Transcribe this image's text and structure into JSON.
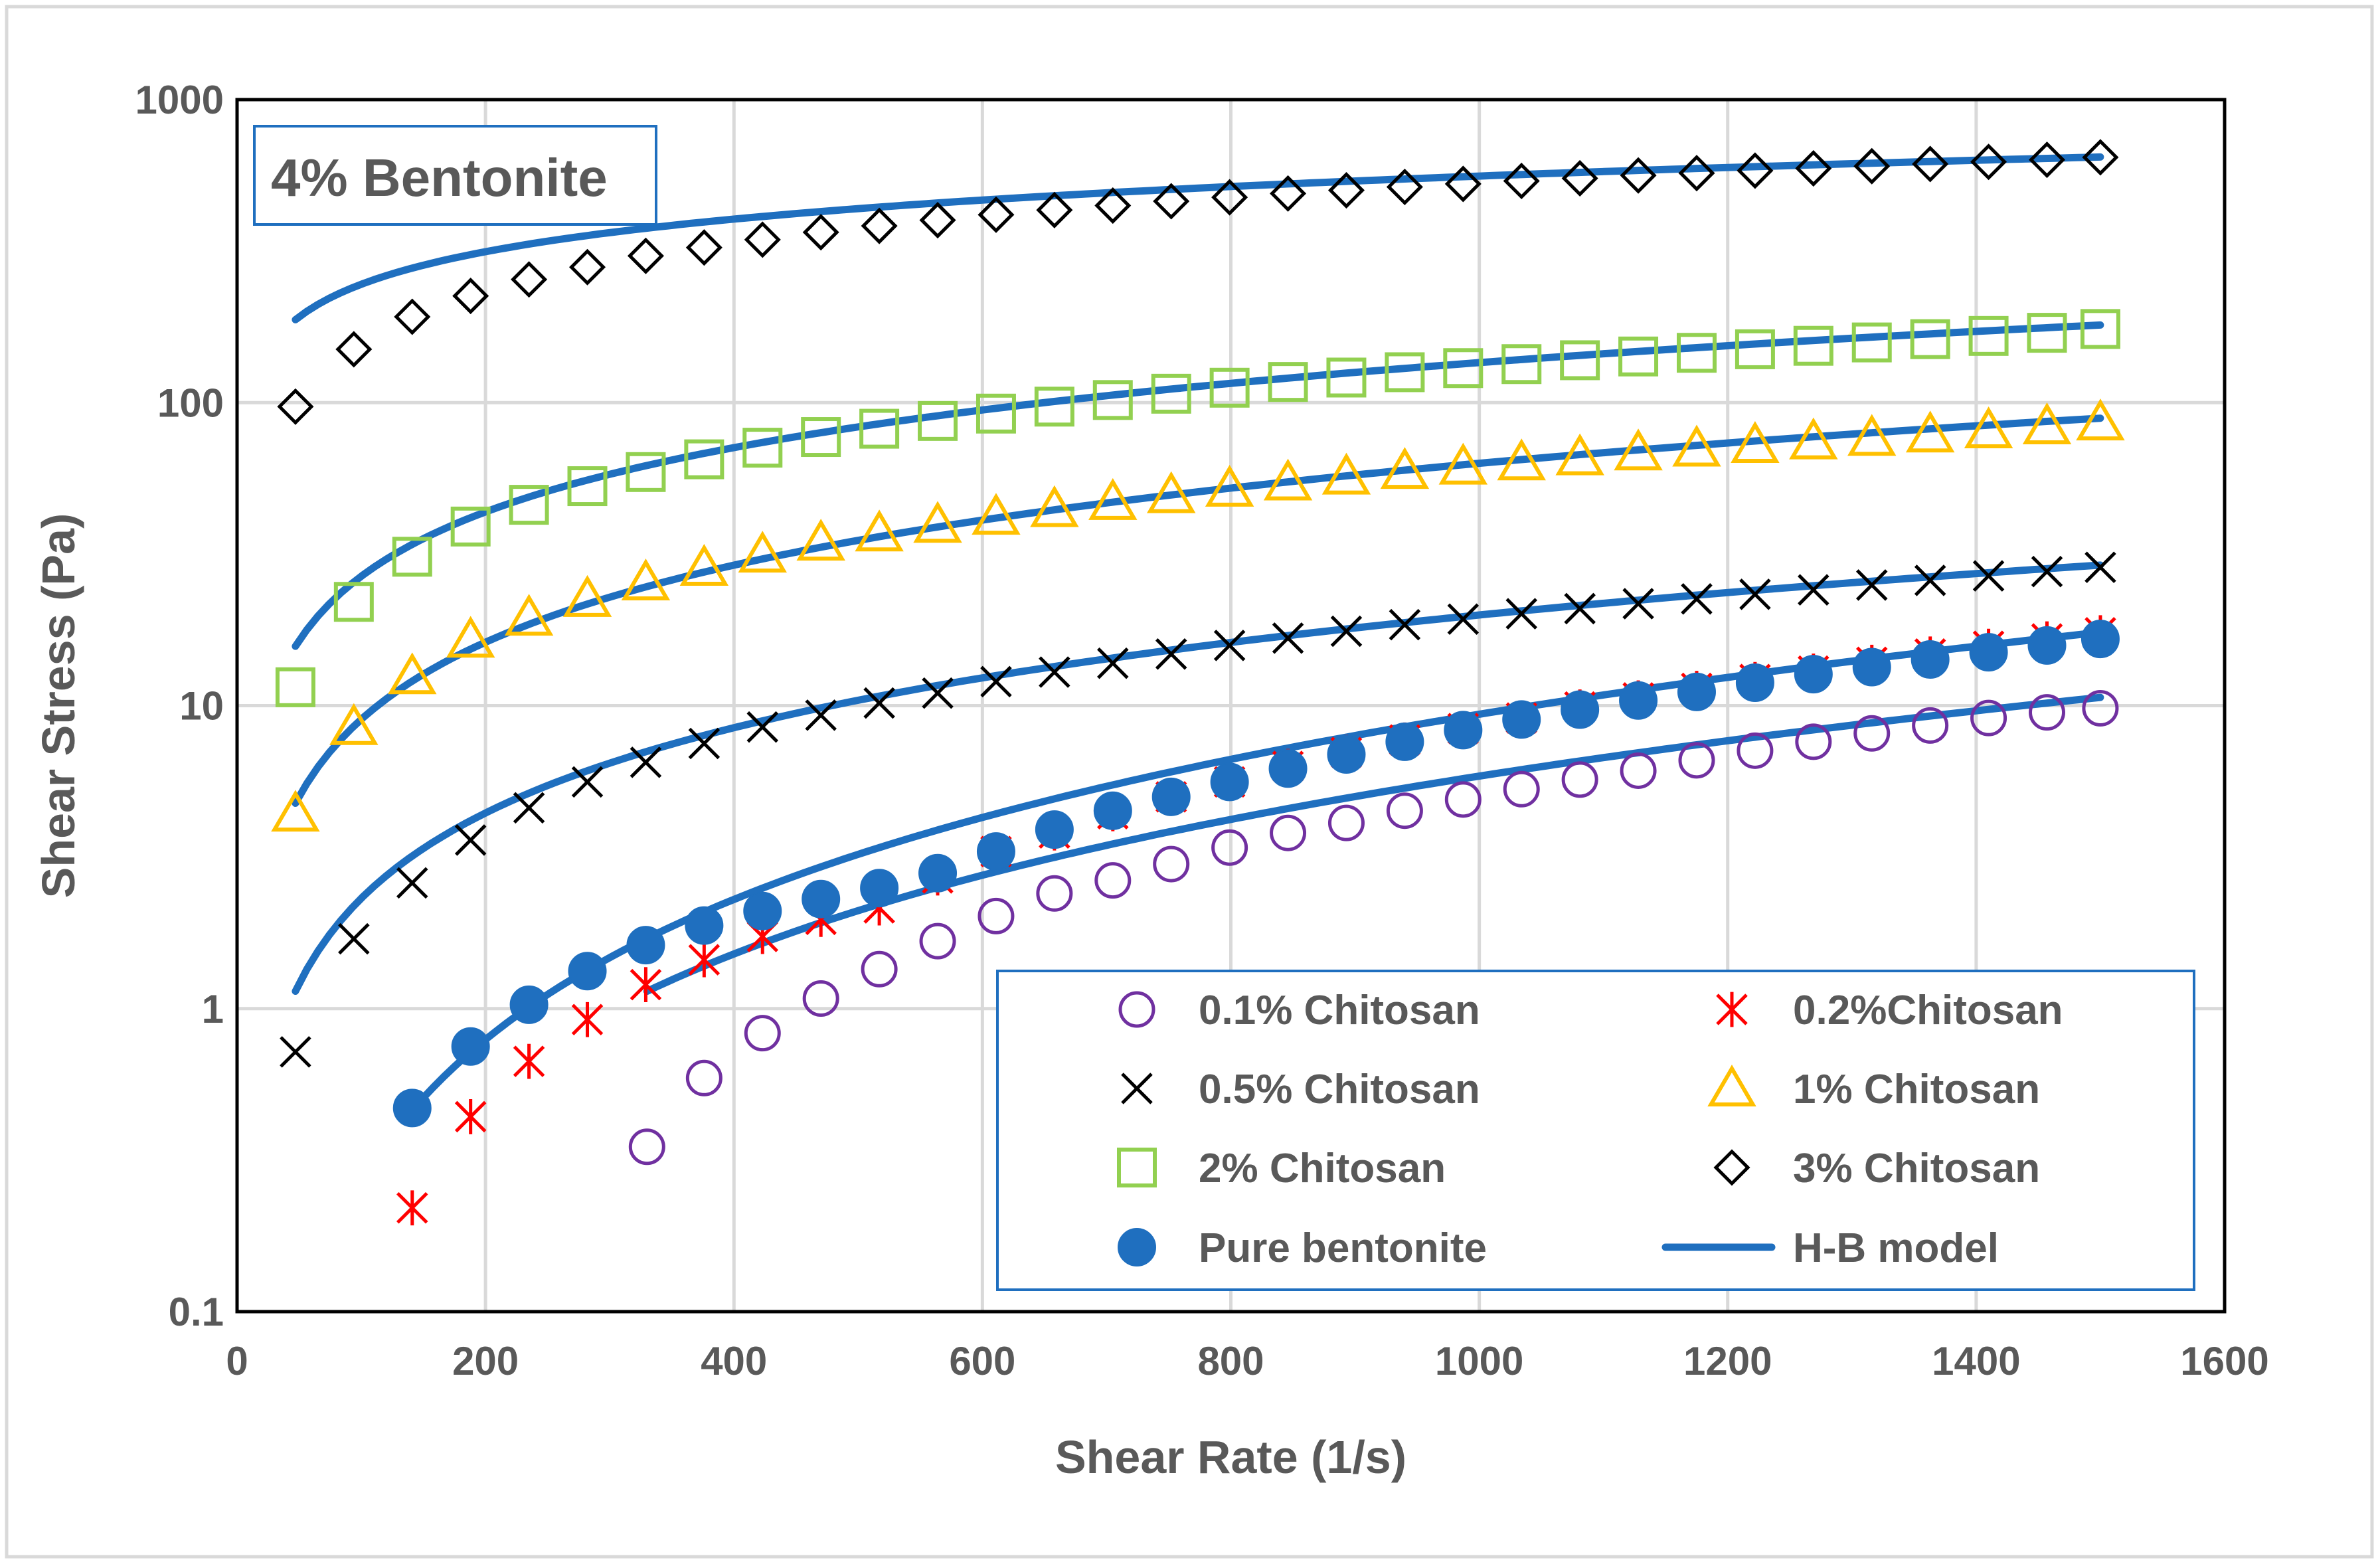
{
  "chart_data": {
    "type": "scatter",
    "title": "",
    "annotation": "4% Bentonite",
    "xlabel": "Shear Rate (1/s)",
    "ylabel": "Shear Stress (Pa)",
    "xlim": [
      0,
      1600
    ],
    "ylim": [
      0.1,
      1000
    ],
    "yscale": "log",
    "grid": true,
    "legend_position": "bottom-right",
    "x_ticks": [
      0,
      200,
      400,
      600,
      800,
      1000,
      1200,
      1400,
      1600
    ],
    "x_tick_labels": [
      "0",
      "200",
      "400",
      "600",
      "800",
      "1000",
      "1200",
      "1400",
      "1600"
    ],
    "y_ticks": [
      0.1,
      1,
      10,
      100,
      1000
    ],
    "y_tick_labels": [
      "0.1",
      "1",
      "10",
      "100",
      "1000"
    ],
    "colors": {
      "blue": "#1f6fbf",
      "purple": "#7030a0",
      "red": "#ff0000",
      "black": "#000000",
      "yellow": "#ffc000",
      "green": "#92d050",
      "grid": "#d9d9d9",
      "frame": "#000000",
      "label": "#595959"
    },
    "series": [
      {
        "name": "0.1% Chitosan",
        "marker": "circle-open",
        "color": "#7030a0",
        "x": [
          330,
          376,
          423,
          470,
          517,
          564,
          611,
          658,
          705,
          752,
          799,
          846,
          893,
          940,
          987,
          1034,
          1081,
          1128,
          1175,
          1222,
          1269,
          1316,
          1363,
          1410,
          1457,
          1500
        ],
        "y": [
          0.35,
          0.59,
          0.83,
          1.08,
          1.35,
          1.67,
          2.02,
          2.4,
          2.65,
          3.0,
          3.4,
          3.8,
          4.1,
          4.5,
          4.9,
          5.3,
          5.7,
          6.1,
          6.6,
          7.1,
          7.6,
          8.1,
          8.6,
          9.1,
          9.5,
          9.8
        ]
      },
      {
        "name": "0.2%Chitosan",
        "marker": "star",
        "color": "#ff0000",
        "x": [
          141,
          188,
          235,
          282,
          329,
          376,
          423,
          470,
          517,
          564,
          611,
          658,
          705,
          752,
          799,
          846,
          893,
          940,
          987,
          1034,
          1081,
          1128,
          1175,
          1222,
          1269,
          1316,
          1363,
          1410,
          1457,
          1500
        ],
        "y": [
          0.22,
          0.44,
          0.67,
          0.92,
          1.2,
          1.45,
          1.73,
          1.97,
          2.15,
          2.7,
          3.3,
          3.8,
          4.4,
          5.0,
          5.6,
          6.3,
          7.0,
          7.7,
          8.4,
          9.1,
          9.9,
          10.6,
          11.4,
          12.2,
          13.0,
          13.9,
          14.8,
          15.7,
          16.6,
          17.4
        ]
      },
      {
        "name": "0.5% Chitosan",
        "marker": "x",
        "color": "#000000",
        "x": [
          47,
          94,
          141,
          188,
          235,
          282,
          329,
          376,
          423,
          470,
          517,
          564,
          611,
          658,
          705,
          752,
          799,
          846,
          893,
          940,
          987,
          1034,
          1081,
          1128,
          1175,
          1222,
          1269,
          1316,
          1363,
          1410,
          1457,
          1500
        ],
        "y": [
          0.72,
          1.7,
          2.6,
          3.6,
          4.6,
          5.6,
          6.5,
          7.5,
          8.5,
          9.3,
          10.2,
          11.0,
          12.0,
          12.9,
          13.8,
          14.8,
          15.8,
          16.7,
          17.6,
          18.5,
          19.3,
          20.1,
          20.9,
          21.7,
          22.5,
          23.3,
          24.1,
          25.0,
          25.9,
          26.8,
          27.7,
          28.6
        ]
      },
      {
        "name": "1% Chitosan",
        "marker": "triangle-open",
        "color": "#ffc000",
        "x": [
          47,
          94,
          141,
          188,
          235,
          282,
          329,
          376,
          423,
          470,
          517,
          564,
          611,
          658,
          705,
          752,
          799,
          846,
          893,
          940,
          987,
          1034,
          1081,
          1128,
          1175,
          1222,
          1269,
          1316,
          1363,
          1410,
          1457,
          1500
        ],
        "y": [
          4.4,
          8.5,
          12.5,
          16.5,
          19.5,
          22.5,
          25.5,
          28.5,
          31.5,
          34.5,
          37.0,
          39.5,
          42.0,
          44.5,
          47.0,
          49.5,
          52.0,
          54.5,
          57.0,
          59.5,
          61.5,
          63.5,
          66.0,
          68.5,
          70.5,
          72.5,
          74.5,
          76.5,
          78.5,
          81.0,
          83.5,
          86.0
        ]
      },
      {
        "name": "2% Chitosan",
        "marker": "square-open",
        "color": "#92d050",
        "x": [
          47,
          94,
          141,
          188,
          235,
          282,
          329,
          376,
          423,
          470,
          517,
          564,
          611,
          658,
          705,
          752,
          799,
          846,
          893,
          940,
          987,
          1034,
          1081,
          1128,
          1175,
          1222,
          1269,
          1316,
          1363,
          1410,
          1457,
          1500
        ],
        "y": [
          11.5,
          22,
          31,
          39,
          46,
          53,
          59,
          65,
          71,
          77,
          82,
          87,
          92,
          97,
          102,
          107,
          112,
          117,
          121,
          126,
          130,
          134,
          138,
          142,
          146,
          150,
          154,
          158,
          162,
          166,
          170,
          175
        ]
      },
      {
        "name": "3% Chitosan",
        "marker": "diamond-open",
        "color": "#000000",
        "x": [
          47,
          94,
          141,
          188,
          235,
          282,
          329,
          376,
          423,
          470,
          517,
          564,
          611,
          658,
          705,
          752,
          799,
          846,
          893,
          940,
          987,
          1034,
          1081,
          1128,
          1175,
          1222,
          1269,
          1316,
          1363,
          1410,
          1457,
          1500
        ],
        "y": [
          97,
          150,
          192,
          225,
          255,
          280,
          305,
          325,
          345,
          365,
          383,
          400,
          417,
          432,
          447,
          462,
          476,
          490,
          502,
          515,
          527,
          539,
          550,
          562,
          572,
          583,
          593,
          603,
          613,
          623,
          633,
          645
        ]
      },
      {
        "name": "Pure bentonite",
        "marker": "circle-filled",
        "color": "#1f6fbf",
        "x": [
          141,
          188,
          235,
          282,
          329,
          376,
          423,
          470,
          517,
          564,
          611,
          658,
          705,
          752,
          799,
          846,
          893,
          940,
          987,
          1034,
          1081,
          1128,
          1175,
          1222,
          1269,
          1316,
          1363,
          1410,
          1457,
          1500
        ],
        "y": [
          0.47,
          0.75,
          1.03,
          1.33,
          1.62,
          1.88,
          2.1,
          2.3,
          2.5,
          2.8,
          3.3,
          3.9,
          4.5,
          5.0,
          5.6,
          6.2,
          6.9,
          7.6,
          8.3,
          9.0,
          9.7,
          10.4,
          11.1,
          11.9,
          12.7,
          13.4,
          14.2,
          15.0,
          15.8,
          16.6
        ]
      }
    ],
    "model_curves": [
      {
        "name": "H-B model",
        "fit_for": "0.1% Chitosan",
        "color": "#1f6fbf",
        "tau0": 0,
        "K": 0.00022,
        "n": 1.475,
        "x_range": [
          330,
          1500
        ]
      },
      {
        "name": "H-B model",
        "fit_for": "0.2%Chitosan / Pure bentonite",
        "color": "#1f6fbf",
        "tau0": 0,
        "K": 0.000231,
        "n": 1.536,
        "x_range": [
          141,
          1500
        ]
      },
      {
        "name": "H-B model",
        "fit_for": "0.5% Chitosan",
        "color": "#1f6fbf",
        "tau0": 0,
        "K": 0.0312,
        "n": 0.935,
        "x_range": [
          47,
          1500
        ]
      },
      {
        "name": "H-B model",
        "fit_for": "1% Chitosan",
        "color": "#1f6fbf",
        "tau0": 0,
        "K": 0.184,
        "n": 0.845,
        "x_range": [
          47,
          1500
        ]
      },
      {
        "name": "H-B model",
        "fit_for": "2% Chitosan",
        "color": "#1f6fbf",
        "tau0": 0,
        "K": 1.04,
        "n": 0.705,
        "x_range": [
          47,
          1500
        ]
      },
      {
        "name": "H-B model",
        "fit_for": "3% Chitosan",
        "color": "#1f6fbf",
        "tau0": 0,
        "K": 47.5,
        "n": 0.357,
        "x_range": [
          47,
          1500
        ]
      }
    ],
    "legend": [
      {
        "label": "0.1% Chitosan",
        "marker": "circle-open",
        "color": "#7030a0"
      },
      {
        "label": "0.2%Chitosan",
        "marker": "star",
        "color": "#ff0000"
      },
      {
        "label": "0.5% Chitosan",
        "marker": "x",
        "color": "#000000"
      },
      {
        "label": "1% Chitosan",
        "marker": "triangle-open",
        "color": "#ffc000"
      },
      {
        "label": "2% Chitosan",
        "marker": "square-open",
        "color": "#92d050"
      },
      {
        "label": "3% Chitosan",
        "marker": "diamond-open",
        "color": "#000000"
      },
      {
        "label": "Pure bentonite",
        "marker": "circle-filled",
        "color": "#1f6fbf"
      },
      {
        "label": "H-B model",
        "marker": "line",
        "color": "#1f6fbf"
      }
    ]
  }
}
